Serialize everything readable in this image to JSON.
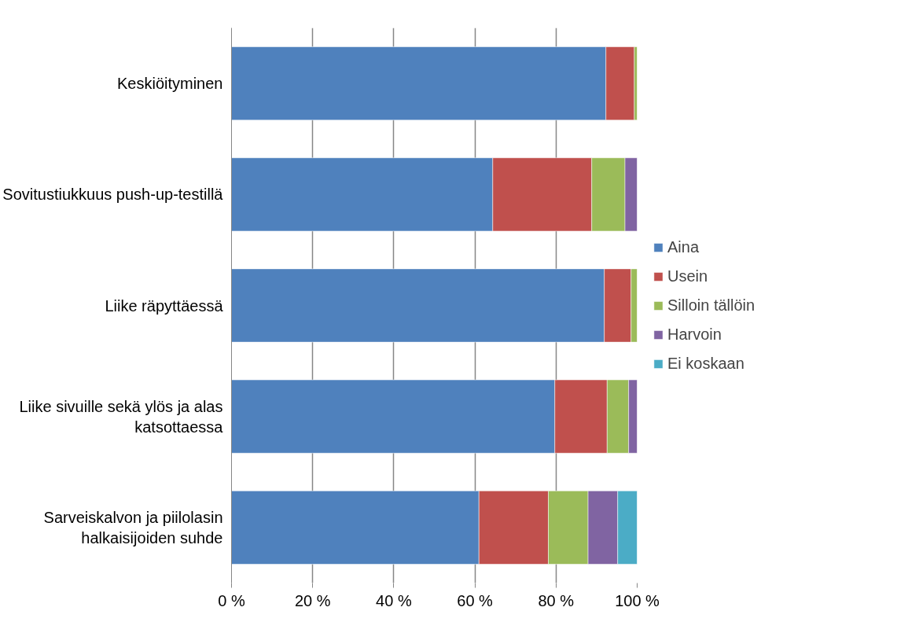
{
  "chart_data": {
    "type": "bar",
    "orientation": "horizontal",
    "stacked": true,
    "categories": [
      "Keskiöityminen",
      "Sovitustiukkuus push-up-testillä",
      "Liike räpyttäessä",
      "Liike sivuille sekä ylös ja alas katsottaessa",
      "Sarveiskalvon ja piilolasin halkaisijoiden suhde"
    ],
    "series": [
      {
        "name": "Aina",
        "color": "#4f81bd",
        "values": [
          92.3,
          64.4,
          91.9,
          79.7,
          61.0
        ]
      },
      {
        "name": "Usein",
        "color": "#c0504d",
        "values": [
          7.0,
          24.4,
          6.6,
          12.9,
          17.1
        ]
      },
      {
        "name": "Silloin tällöin",
        "color": "#9bbb59",
        "values": [
          0.7,
          8.2,
          1.5,
          5.3,
          9.8
        ]
      },
      {
        "name": "Harvoin",
        "color": "#8064a2",
        "values": [
          null,
          3.0,
          null,
          2.1,
          7.3
        ]
      },
      {
        "name": "Ei koskaan",
        "color": "#4bacc6",
        "values": [
          null,
          null,
          null,
          null,
          4.8
        ]
      }
    ],
    "xlim": [
      0,
      100
    ],
    "xticks": [
      {
        "value": 0,
        "label": "0 %"
      },
      {
        "value": 20,
        "label": "20 %"
      },
      {
        "value": 40,
        "label": "40 %"
      },
      {
        "value": 60,
        "label": "60 %"
      },
      {
        "value": 80,
        "label": "80 %"
      },
      {
        "value": 100,
        "label": "100 %"
      }
    ],
    "grid": "x",
    "legend": "right"
  }
}
